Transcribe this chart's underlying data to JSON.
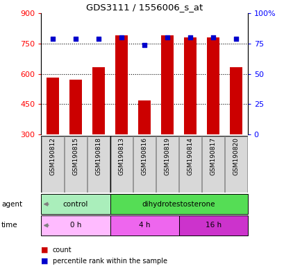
{
  "title": "GDS3111 / 1556006_s_at",
  "samples": [
    "GSM190812",
    "GSM190815",
    "GSM190818",
    "GSM190813",
    "GSM190816",
    "GSM190819",
    "GSM190814",
    "GSM190817",
    "GSM190820"
  ],
  "counts": [
    582,
    572,
    632,
    790,
    467,
    790,
    780,
    780,
    632
  ],
  "percentiles": [
    79,
    79,
    79,
    80,
    74,
    80,
    80,
    80,
    79
  ],
  "ymin": 300,
  "ymax": 900,
  "yticks": [
    300,
    450,
    600,
    750,
    900
  ],
  "right_yticks": [
    0,
    25,
    50,
    75,
    100
  ],
  "bar_color": "#cc0000",
  "dot_color": "#0000cc",
  "agent_groups": [
    {
      "label": "control",
      "start": 0,
      "end": 3,
      "color": "#aaeebb"
    },
    {
      "label": "dihydrotestosterone",
      "start": 3,
      "end": 9,
      "color": "#55dd55"
    }
  ],
  "time_groups": [
    {
      "label": "0 h",
      "start": 0,
      "end": 3,
      "color": "#ffbbff"
    },
    {
      "label": "4 h",
      "start": 3,
      "end": 6,
      "color": "#ee66ee"
    },
    {
      "label": "16 h",
      "start": 6,
      "end": 9,
      "color": "#cc33cc"
    }
  ],
  "legend_items": [
    {
      "label": "count",
      "color": "#cc0000",
      "marker": "s"
    },
    {
      "label": "percentile rank within the sample",
      "color": "#0000cc",
      "marker": "s"
    }
  ]
}
